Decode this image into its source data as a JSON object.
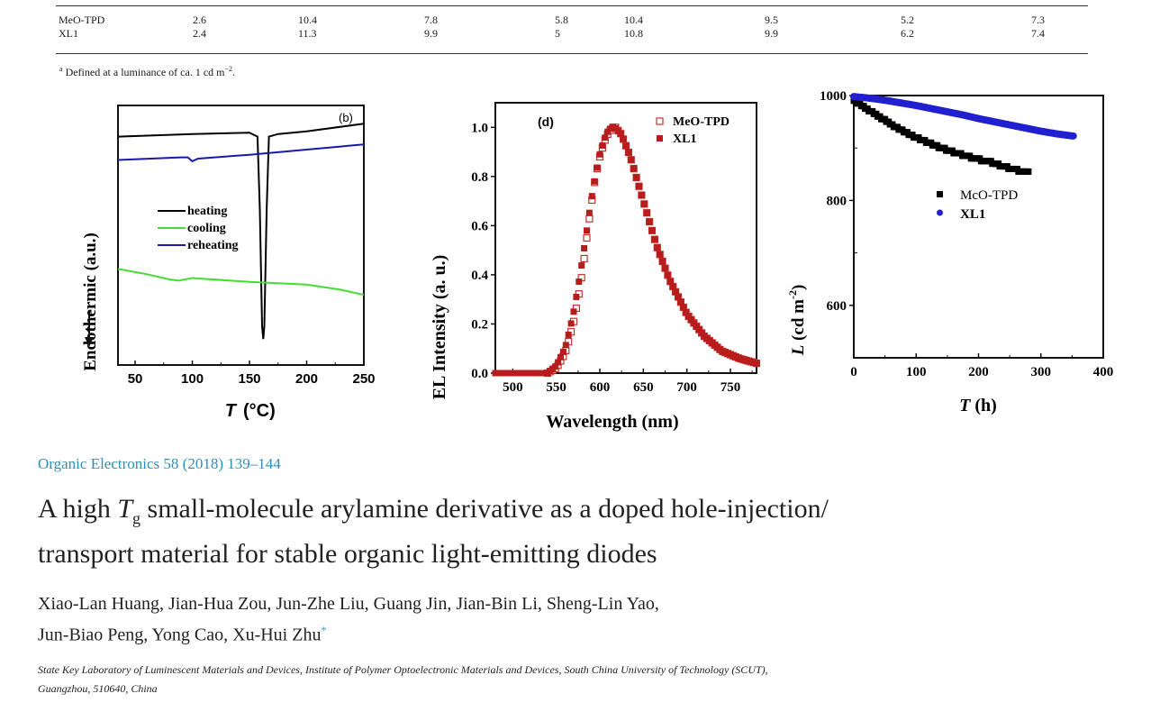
{
  "table": {
    "rows": [
      {
        "name": "MeO-TPD",
        "values": [
          "2.6",
          "10.4",
          "7.8",
          "5.8",
          "10.4",
          "9.5",
          "5.2",
          "7.3"
        ]
      },
      {
        "name": "XL1",
        "values": [
          "2.4",
          "11.3",
          "9.9",
          "5",
          "10.8",
          "9.9",
          "6.2",
          "7.4"
        ]
      }
    ],
    "footnote_mark": "a",
    "footnote_text": "Defined at a luminance of ca. 1 cd m",
    "footnote_exp": "−2",
    "footnote_end": "."
  },
  "chart_data": [
    {
      "type": "line",
      "panel_label": "(b)",
      "title": "",
      "xlabel": "T (°C)",
      "xlabel_var": "T",
      "xlabel_unit": "(°C)",
      "ylabel": "Endothermic (a.u.)",
      "ylabel_arrow": "down",
      "xlim": [
        35,
        250
      ],
      "ylim": [
        0,
        1
      ],
      "x_ticks": [
        50,
        100,
        150,
        200,
        250
      ],
      "y_ticks": [],
      "legend": [
        "heating",
        "cooling",
        "reheating"
      ],
      "legend_placement": "center-left",
      "colors": {
        "heating": "#000000",
        "cooling": "#44dd33",
        "reheating": "#1a1aa8"
      },
      "series": [
        {
          "name": "heating",
          "x": [
            35,
            100,
            150,
            157,
            159,
            161,
            162,
            163,
            165,
            167,
            175,
            200,
            250
          ],
          "y": [
            0.88,
            0.89,
            0.895,
            0.88,
            0.6,
            0.15,
            0.1,
            0.15,
            0.6,
            0.88,
            0.89,
            0.9,
            0.93
          ]
        },
        {
          "name": "cooling",
          "x": [
            35,
            60,
            80,
            88,
            100,
            150,
            200,
            230,
            250
          ],
          "y": [
            0.37,
            0.35,
            0.33,
            0.325,
            0.335,
            0.32,
            0.31,
            0.29,
            0.27
          ]
        },
        {
          "name": "reheating",
          "x": [
            35,
            90,
            96,
            100,
            105,
            150,
            200,
            250
          ],
          "y": [
            0.79,
            0.8,
            0.8,
            0.785,
            0.795,
            0.81,
            0.83,
            0.85
          ]
        }
      ]
    },
    {
      "type": "scatter",
      "panel_label": "(d)",
      "title": "",
      "xlabel": "Wavelength (nm)",
      "ylabel": "EL Intensity (a. u.)",
      "xlim": [
        480,
        780
      ],
      "ylim": [
        0.0,
        1.1
      ],
      "x_ticks": [
        500,
        550,
        600,
        650,
        700,
        750
      ],
      "y_ticks": [
        0.0,
        0.2,
        0.4,
        0.6,
        0.8,
        1.0
      ],
      "y_tick_labels": [
        "0.0",
        "0.2",
        "0.4",
        "0.6",
        "0.8",
        "1.0"
      ],
      "legend": [
        "MeO-TPD",
        "XL1"
      ],
      "legend_placement": "top-right",
      "colors": {
        "MeO-TPD": "#c4332e",
        "XL1": "#b81c1c"
      },
      "series": [
        {
          "name": "MeO-TPD",
          "marker": "open-square",
          "peak_nm": 618,
          "x": [
            540,
            550,
            560,
            565,
            570,
            575,
            580,
            585,
            590,
            595,
            600,
            605,
            610,
            615,
            618,
            625,
            635,
            650,
            665,
            680,
            700,
            720,
            740,
            760,
            780
          ],
          "y": [
            0.0,
            0.02,
            0.08,
            0.14,
            0.21,
            0.3,
            0.41,
            0.55,
            0.68,
            0.8,
            0.88,
            0.94,
            0.98,
            1.0,
            1.0,
            0.97,
            0.88,
            0.7,
            0.52,
            0.38,
            0.24,
            0.15,
            0.09,
            0.06,
            0.04
          ]
        },
        {
          "name": "XL1",
          "marker": "filled-square",
          "peak_nm": 617,
          "x": [
            480,
            500,
            520,
            540,
            550,
            560,
            565,
            570,
            575,
            580,
            585,
            590,
            595,
            600,
            605,
            610,
            615,
            617,
            625,
            635,
            650,
            665,
            680,
            700,
            720,
            740,
            760,
            780
          ],
          "y": [
            0.0,
            0.0,
            0.0,
            0.0,
            0.03,
            0.1,
            0.17,
            0.25,
            0.35,
            0.46,
            0.58,
            0.7,
            0.8,
            0.89,
            0.95,
            0.99,
            1.0,
            1.0,
            0.97,
            0.88,
            0.7,
            0.52,
            0.38,
            0.24,
            0.15,
            0.09,
            0.06,
            0.04
          ]
        }
      ]
    },
    {
      "type": "scatter",
      "panel_label": "",
      "title": "",
      "xlabel": "T (h)",
      "ylabel": "L (cd m-2)",
      "xlim": [
        0,
        400
      ],
      "ylim": [
        500,
        1000
      ],
      "x_ticks": [
        0,
        100,
        200,
        300,
        400
      ],
      "y_ticks": [
        600,
        800,
        1000
      ],
      "legend": [
        "McO-TPD",
        "XL1"
      ],
      "legend_placement": "center",
      "colors": {
        "McO-TPD": "#000000",
        "XL1": "#2020d0"
      },
      "series": [
        {
          "name": "McO-TPD",
          "marker": "filled-square",
          "x": [
            0,
            20,
            40,
            60,
            80,
            100,
            120,
            140,
            160,
            180,
            200,
            220,
            240,
            260,
            280
          ],
          "y": [
            990,
            975,
            960,
            945,
            932,
            920,
            910,
            900,
            892,
            885,
            878,
            873,
            865,
            858,
            855
          ]
        },
        {
          "name": "XL1",
          "marker": "filled-circle",
          "x": [
            0,
            25,
            50,
            75,
            100,
            125,
            150,
            175,
            200,
            225,
            250,
            275,
            300,
            325,
            350
          ],
          "y": [
            998,
            995,
            991,
            986,
            981,
            975,
            969,
            963,
            956,
            950,
            944,
            938,
            932,
            927,
            923
          ]
        }
      ]
    }
  ],
  "paper": {
    "journal": "Organic Electronics 58 (2018) 139–144",
    "title_pre": "A high ",
    "title_var": "T",
    "title_sub": "g",
    "title_post_line1": " small-molecule arylamine derivative as a doped hole-injection/",
    "title_line2": "transport material for stable organic light-emitting diodes",
    "authors_line1": "Xiao-Lan Huang, Jian-Hua Zou, Jun-Zhe Liu, Guang Jin, Jian-Bin Li, Sheng-Lin Yao,",
    "authors_line2": "Jun-Biao Peng, Yong Cao, Xu-Hui Zhu",
    "corresponding_mark": "*",
    "affiliation_line1": "State Key Laboratory of Luminescent Materials and Devices, Institute of Polymer Optoelectronic Materials and Devices, South China University of Technology (SCUT),",
    "affiliation_line2": "Guangzhou, 510640, China"
  }
}
